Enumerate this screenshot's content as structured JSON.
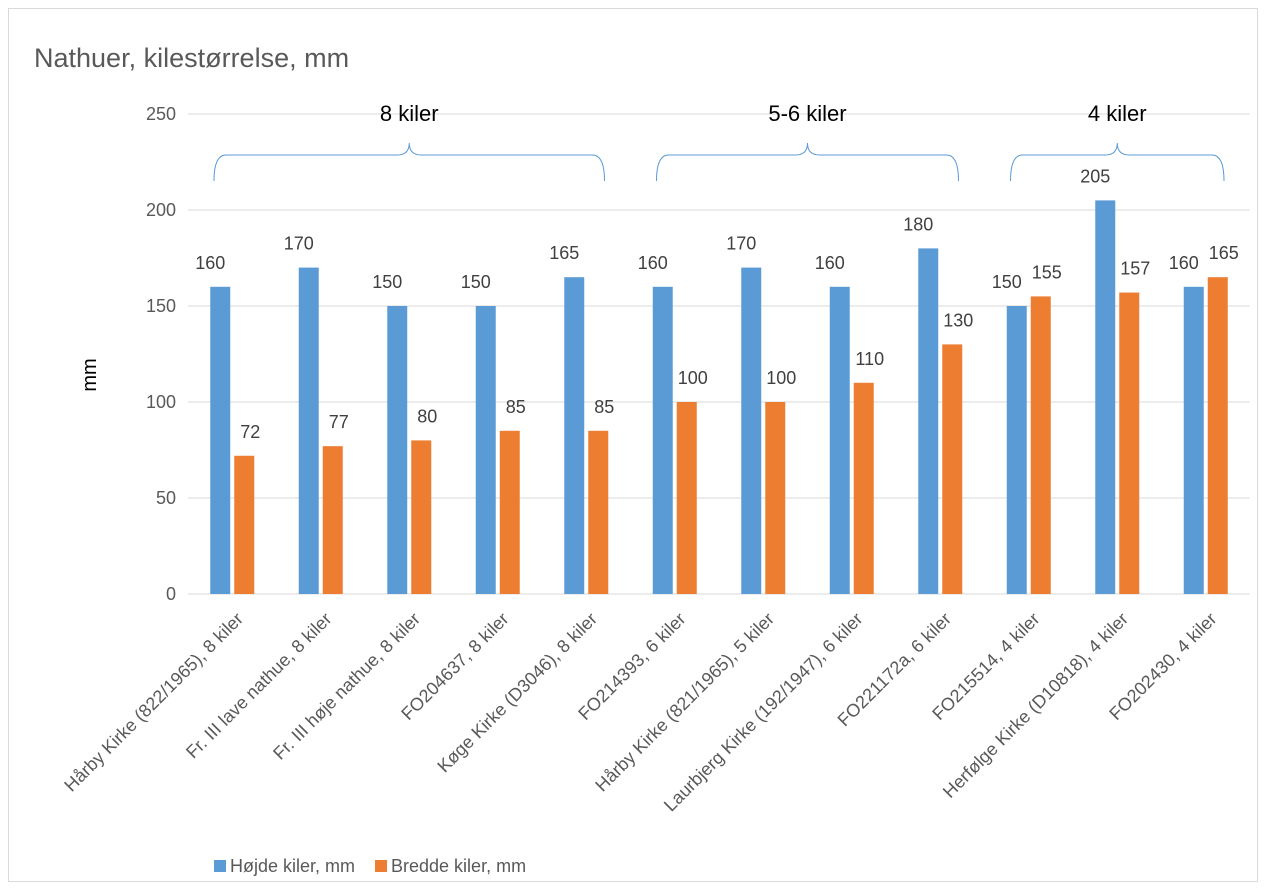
{
  "chart_data": {
    "type": "bar",
    "title": "Nathuer, kilestørrelse, mm",
    "xlabel": "",
    "ylabel": "mm",
    "ylim": [
      0,
      250
    ],
    "yticks": [
      0,
      50,
      100,
      150,
      200,
      250
    ],
    "grid": true,
    "legend_position": "bottom-left",
    "categories": [
      "Hårby Kirke (822/1965), 8 kiler",
      "Fr. III lave nathue, 8 kiler",
      "Fr. III høje nathue, 8 kiler",
      "FO204637, 8 kiler",
      "Køge Kirke (D3046), 8 kiler",
      "FO214393, 6 kiler",
      "Hårby Kirke (821/1965), 5 kiler",
      "Laurbjerg Kirke (192/1947), 6 kiler",
      "FO221172a, 6 kiler",
      "FO215514, 4 kiler",
      "Herfølge Kirke (D10818), 4 kiler",
      "FO202430, 4 kiler"
    ],
    "series": [
      {
        "name": "Højde kiler, mm",
        "color": "#5b9bd5",
        "values": [
          160,
          170,
          150,
          150,
          165,
          160,
          170,
          160,
          180,
          150,
          205,
          160
        ]
      },
      {
        "name": "Bredde kiler, mm",
        "color": "#ed7d31",
        "values": [
          72,
          77,
          80,
          85,
          85,
          100,
          100,
          110,
          130,
          155,
          157,
          165
        ]
      }
    ],
    "group_annotations": [
      {
        "label": "8 kiler",
        "from": 0,
        "to": 4
      },
      {
        "label": "5-6 kiler",
        "from": 5,
        "to": 8
      },
      {
        "label": "4 kiler",
        "from": 9,
        "to": 11
      }
    ],
    "bracket_color": "#5b9bd5"
  }
}
